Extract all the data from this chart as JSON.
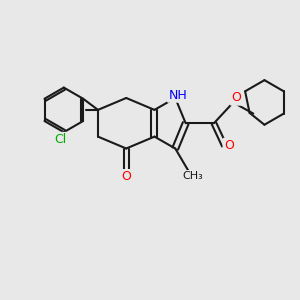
{
  "bg_color": "#e8e8e8",
  "bond_color": "#1a1a1a",
  "bond_width": 1.5,
  "atom_colors": {
    "O": "#ff0000",
    "N": "#0000ff",
    "Cl": "#00aa00",
    "C": "#1a1a1a",
    "H": "#1a1a1a"
  },
  "font_size": 9,
  "fig_size": [
    3.0,
    3.0
  ],
  "dpi": 100
}
